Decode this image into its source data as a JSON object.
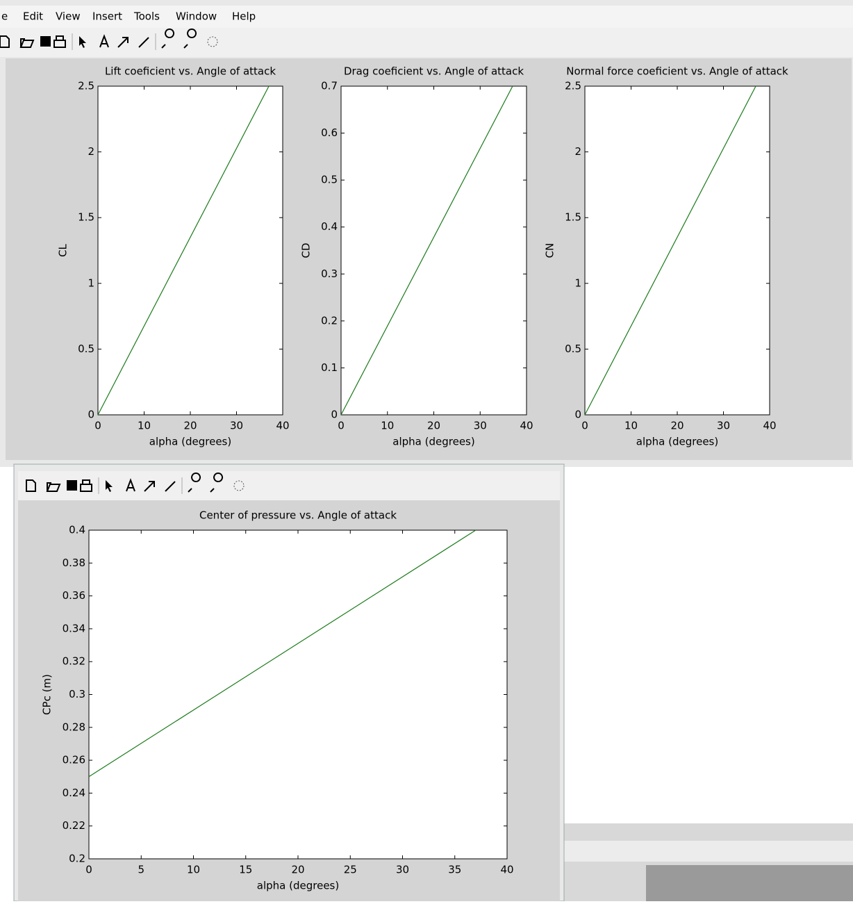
{
  "menu": [
    "e",
    "Edit",
    "View",
    "Insert",
    "Tools",
    "Window",
    "Help"
  ],
  "chart_data": [
    {
      "type": "line",
      "title": "Lift coeficient vs. Angle of attack",
      "x_label": "alpha (degrees)",
      "y_label": "CL",
      "x": [
        0,
        37
      ],
      "values": [
        0,
        2.5
      ],
      "color": "#1a7a1a",
      "xlim": [
        0,
        40
      ],
      "xticks": [
        0,
        10,
        20,
        30,
        40
      ],
      "ylim": [
        0,
        2.5
      ],
      "yticks": [
        0,
        0.5,
        1,
        1.5,
        2,
        2.5
      ]
    },
    {
      "type": "line",
      "title": "Drag coeficient vs. Angle of attack",
      "x_label": "alpha (degrees)",
      "y_label": "CD",
      "x": [
        0,
        37
      ],
      "values": [
        0,
        0.7
      ],
      "color": "#1a7a1a",
      "xlim": [
        0,
        40
      ],
      "xticks": [
        0,
        10,
        20,
        30,
        40
      ],
      "ylim": [
        0,
        0.7
      ],
      "yticks": [
        0,
        0.1,
        0.2,
        0.3,
        0.4,
        0.5,
        0.6,
        0.7
      ]
    },
    {
      "type": "line",
      "title": "Normal force coeficient vs. Angle of attack",
      "x_label": "alpha (degrees)",
      "y_label": "CN",
      "x": [
        0,
        37
      ],
      "values": [
        0,
        2.5
      ],
      "color": "#1a7a1a",
      "xlim": [
        0,
        40
      ],
      "xticks": [
        0,
        10,
        20,
        30,
        40
      ],
      "ylim": [
        0,
        2.5
      ],
      "yticks": [
        0,
        0.5,
        1,
        1.5,
        2,
        2.5
      ]
    },
    {
      "type": "line",
      "title": "Center of pressure vs. Angle of attack",
      "x_label": "alpha (degrees)",
      "y_label": "CPc (m)",
      "x": [
        0,
        37
      ],
      "values": [
        0.25,
        0.4
      ],
      "color": "#1a7a1a",
      "xlim": [
        0,
        40
      ],
      "xticks": [
        0,
        5,
        10,
        15,
        20,
        25,
        30,
        35,
        40
      ],
      "ylim": [
        0.2,
        0.4
      ],
      "yticks": [
        0.2,
        0.22,
        0.24,
        0.26,
        0.28,
        0.3,
        0.32,
        0.34,
        0.36,
        0.38,
        0.4
      ]
    }
  ]
}
